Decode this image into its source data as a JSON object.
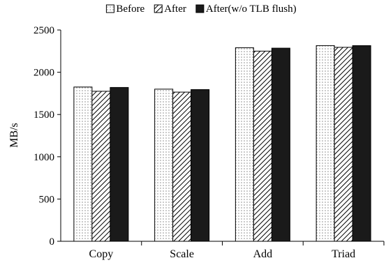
{
  "chart_data": {
    "type": "bar",
    "title": "",
    "xlabel": "",
    "ylabel": "MB/s",
    "ylim": [
      0,
      2500
    ],
    "yticks": [
      0,
      500,
      1000,
      1500,
      2000,
      2500
    ],
    "grid": false,
    "legend_position": "top",
    "categories": [
      "Copy",
      "Scale",
      "Add",
      "Triad"
    ],
    "series": [
      {
        "name": "Before",
        "pattern": "dots",
        "values": [
          1825,
          1800,
          2290,
          2315
        ]
      },
      {
        "name": "After",
        "pattern": "hatch",
        "values": [
          1775,
          1765,
          2250,
          2295
        ]
      },
      {
        "name": "After(w/o TLB flush)",
        "pattern": "solid",
        "values": [
          1820,
          1795,
          2285,
          2315
        ]
      }
    ]
  }
}
